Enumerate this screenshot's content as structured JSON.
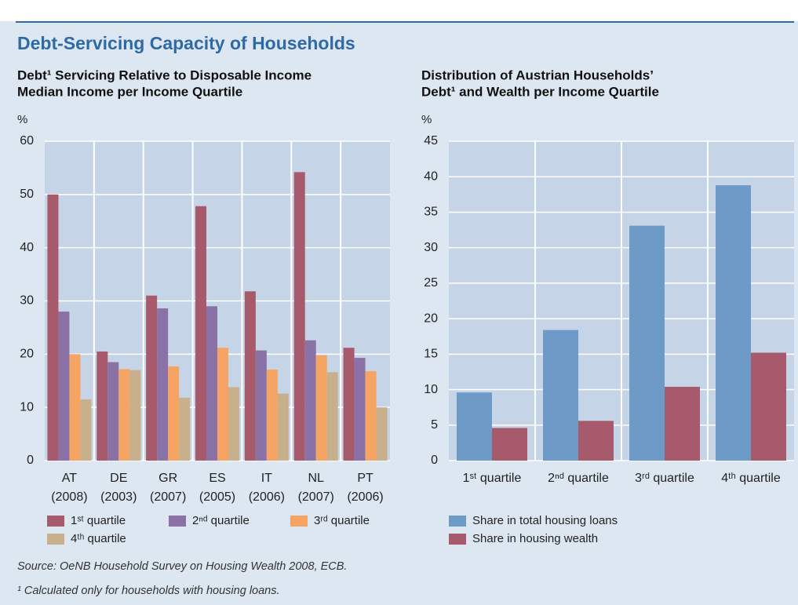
{
  "title": "Debt-Servicing Capacity of Households",
  "source": "Source: OeNB Household Survey on Housing Wealth 2008, ECB.",
  "footnote": "¹ Calculated only for households with housing loans.",
  "chart_data": [
    {
      "type": "bar",
      "title": [
        "Debt¹ Servicing Relative to Disposable Income",
        "Median Income per Income Quartile"
      ],
      "y_label": "%",
      "categories": [
        [
          "AT",
          "(2008)"
        ],
        [
          "DE",
          "(2003)"
        ],
        [
          "GR",
          "(2007)"
        ],
        [
          "ES",
          "(2005)"
        ],
        [
          "IT",
          "(2006)"
        ],
        [
          "NL",
          "(2007)"
        ],
        [
          "PT",
          "(2006)"
        ]
      ],
      "series": [
        {
          "name": "1ˢᵗ quartile",
          "color": "#a65a6c",
          "values": [
            50,
            20.5,
            31,
            47.8,
            31.8,
            54.2,
            21.2
          ]
        },
        {
          "name": "2ⁿᵈ quartile",
          "color": "#8a72a6",
          "values": [
            28,
            18.5,
            28.6,
            29,
            20.7,
            22.6,
            19.3
          ]
        },
        {
          "name": "3ʳᵈ quartile",
          "color": "#f5a463",
          "values": [
            20,
            17.2,
            17.7,
            21.2,
            17.1,
            19.8,
            16.8
          ]
        },
        {
          "name": "4ᵗʰ quartile",
          "color": "#c8b08d",
          "values": [
            11.5,
            17,
            11.8,
            13.8,
            12.6,
            16.6,
            10
          ]
        }
      ],
      "ylim": [
        0,
        60
      ],
      "yticks": [
        0,
        10,
        20,
        30,
        40,
        50,
        60
      ],
      "grid": true
    },
    {
      "type": "bar",
      "title": [
        "Distribution of Austrian Households’",
        "Debt¹ and Wealth per Income Quartile"
      ],
      "y_label": "%",
      "categories": [
        "1ˢᵗ quartile",
        "2ⁿᵈ quartile",
        "3ʳᵈ quartile",
        "4ᵗʰ quartile"
      ],
      "series": [
        {
          "name": "Share in total housing loans",
          "color": "#6e9ac7",
          "values": [
            9.6,
            18.4,
            33.1,
            38.8
          ]
        },
        {
          "name": "Share in housing wealth",
          "color": "#a65a6c",
          "values": [
            4.6,
            5.6,
            10.4,
            15.2
          ]
        }
      ],
      "ylim": [
        0,
        45
      ],
      "yticks": [
        0,
        5,
        10,
        15,
        20,
        25,
        30,
        35,
        40,
        45
      ],
      "grid": true
    }
  ]
}
